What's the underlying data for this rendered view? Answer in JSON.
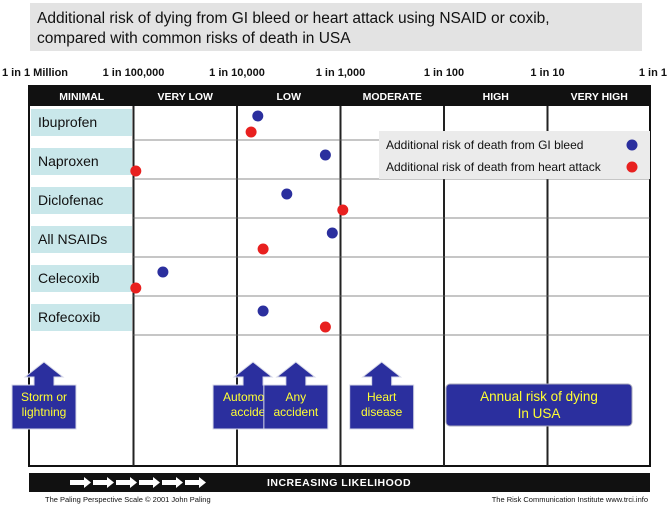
{
  "title_lines": [
    "Additional risk of dying from GI bleed or heart attack using NSAID or coxib,",
    "compared with common risks of death in USA"
  ],
  "chart_data": {
    "type": "scatter",
    "title": "Additional risk of dying from GI bleed or heart attack using NSAID or coxib, compared with common risks of death in USA",
    "x_axis": {
      "scale": "log",
      "range": [
        1000000,
        1
      ],
      "tick_labels": [
        "1 in 1 Million",
        "1 in 100,000",
        "1 in 10,000",
        "1 in 1,000",
        "1 in 100",
        "1 in 10",
        "1 in 1"
      ]
    },
    "bands": [
      "MINIMAL",
      "VERY LOW",
      "LOW",
      "MODERATE",
      "HIGH",
      "VERY HIGH"
    ],
    "categories": [
      "Ibuprofen",
      "Naproxen",
      "Diclofenac",
      "All NSAIDs",
      "Celecoxib",
      "Rofecoxib"
    ],
    "series": [
      {
        "name": "Additional risk of death from GI bleed",
        "color": "#2b2f9e",
        "points": [
          {
            "category": "Ibuprofen",
            "one_in": 6300
          },
          {
            "category": "Naproxen",
            "one_in": 1400
          },
          {
            "category": "Diclofenac",
            "one_in": 3300
          },
          {
            "category": "All NSAIDs",
            "one_in": 1200
          },
          {
            "category": "Celecoxib",
            "one_in": 52000
          },
          {
            "category": "Rofecoxib",
            "one_in": 5600
          }
        ]
      },
      {
        "name": "Additional risk of death from heart attack",
        "color": "#e8201f",
        "points": [
          {
            "category": "Ibuprofen",
            "one_in": 7300
          },
          {
            "category": "Naproxen",
            "one_in": 95000
          },
          {
            "category": "Diclofenac",
            "one_in": 950
          },
          {
            "category": "All NSAIDs",
            "one_in": 5600
          },
          {
            "category": "Celecoxib",
            "one_in": 95000
          },
          {
            "category": "Rofecoxib",
            "one_in": 1400
          }
        ]
      }
    ],
    "comparisons": [
      {
        "label_lines": [
          "Storm or",
          "lightning"
        ],
        "one_in": 1000000
      },
      {
        "label_lines": [
          "Automobile",
          "accident"
        ],
        "one_in": 7000
      },
      {
        "label_lines": [
          "Any",
          "accident"
        ],
        "one_in": 2700
      },
      {
        "label_lines": [
          "Heart",
          "disease"
        ],
        "one_in": 400
      }
    ],
    "comparison_caption_lines": [
      "Annual risk of dying",
      "In USA"
    ],
    "scale_label": "INCREASING LIKELIHOOD",
    "legend_position": "top-right",
    "grid": true
  },
  "footer": {
    "left": "The Paling Perspective Scale © 2001 John Paling",
    "right": "The Risk Communication Institute   www.trci.info"
  },
  "colors": {
    "title_bg": "#e3e3e3",
    "drug_box": "#c9e7ea",
    "comparison_box": "#2b2f9e",
    "comparison_text": "#ffff33",
    "band_header": "#111111"
  }
}
